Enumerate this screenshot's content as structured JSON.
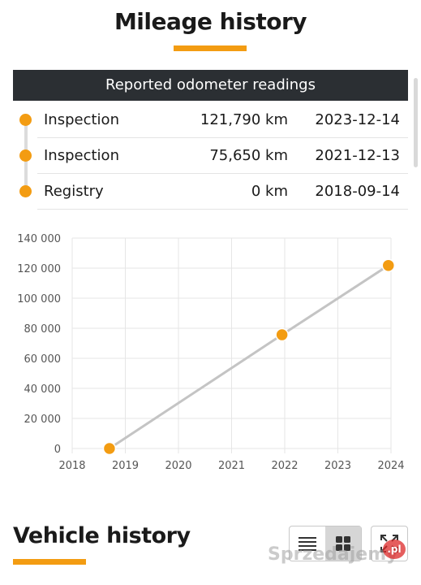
{
  "page": {
    "title": "Mileage history",
    "accent_color": "#f39c12"
  },
  "odometer_table": {
    "header": "Reported odometer readings",
    "rows": [
      {
        "type": "Inspection",
        "mileage": "121,790 km",
        "date": "2023-12-14"
      },
      {
        "type": "Inspection",
        "mileage": "75,650 km",
        "date": "2021-12-13"
      },
      {
        "type": "Registry",
        "mileage": "0 km",
        "date": "2018-09-14"
      }
    ]
  },
  "chart_data": {
    "type": "line",
    "x_ticks": [
      "2018",
      "2019",
      "2020",
      "2021",
      "2022",
      "2023",
      "2024"
    ],
    "y_ticks": [
      "0",
      "20 000",
      "40 000",
      "60 000",
      "80 000",
      "100 000",
      "120 000",
      "140 000"
    ],
    "xlim": [
      "2018-01-01",
      "2024-01-01"
    ],
    "ylim": [
      0,
      140000
    ],
    "points": [
      {
        "x": "2018-09-14",
        "y": 0
      },
      {
        "x": "2021-12-13",
        "y": 75650
      },
      {
        "x": "2023-12-14",
        "y": 121790
      }
    ],
    "line_color": "#c4c4c4",
    "marker_color": "#f39c12",
    "grid": true
  },
  "vehicle_history": {
    "title": "Vehicle history",
    "list_view_icon": "list-icon",
    "grid_view_icon": "grid-icon",
    "expand_icon": "expand-icon"
  },
  "watermark": {
    "text": "Sprzedajemy",
    "badge": ".pl"
  }
}
